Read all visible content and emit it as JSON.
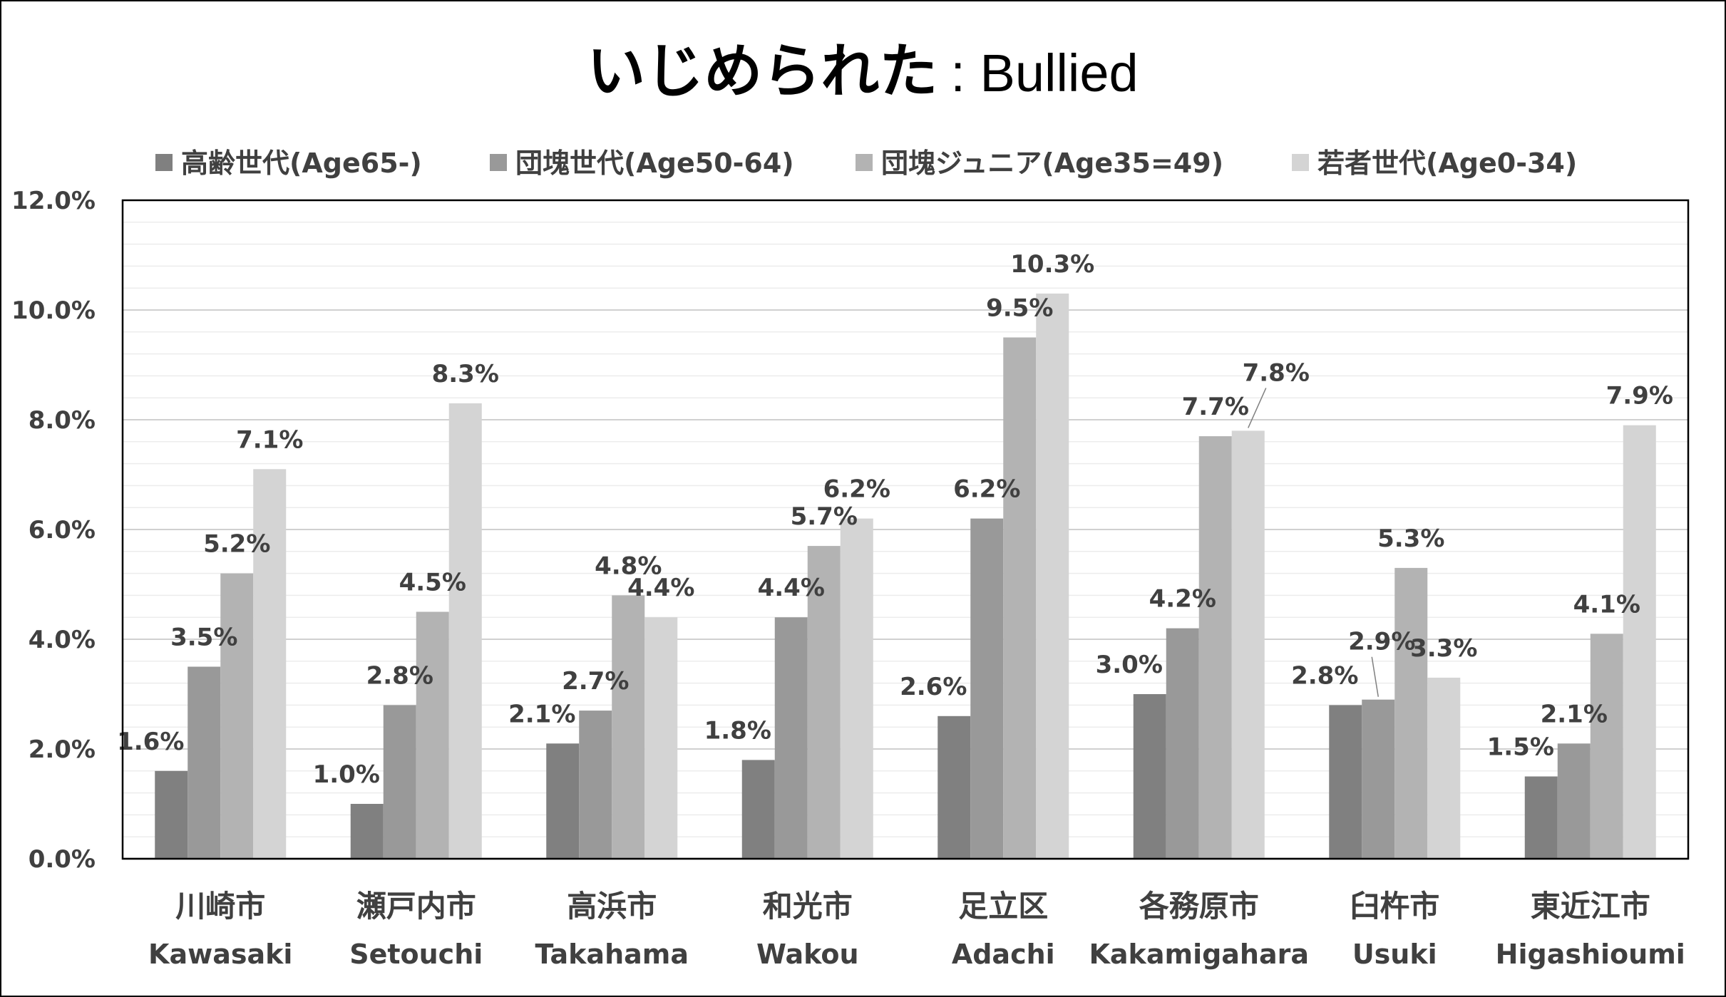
{
  "chart_data": {
    "type": "bar",
    "title_jp": "いじめられた",
    "title_en": ": Bullied",
    "xlabel": "",
    "ylabel": "",
    "ylim": [
      0,
      12
    ],
    "yticks": [
      "0.0%",
      "2.0%",
      "4.0%",
      "6.0%",
      "8.0%",
      "10.0%",
      "12.0%"
    ],
    "grid": true,
    "legend_position": "top",
    "categories": [
      {
        "jp": "川崎市",
        "en": "Kawasaki"
      },
      {
        "jp": "瀬戸内市",
        "en": "Setouchi"
      },
      {
        "jp": "高浜市",
        "en": "Takahama"
      },
      {
        "jp": "和光市",
        "en": "Wakou"
      },
      {
        "jp": "足立区",
        "en": "Adachi"
      },
      {
        "jp": "各務原市",
        "en": "Kakamigahara"
      },
      {
        "jp": "臼杵市",
        "en": "Usuki"
      },
      {
        "jp": "東近江市",
        "en": "Higashioumi"
      }
    ],
    "series": [
      {
        "name": "高齢世代(Age65-)",
        "color": "#808080",
        "values": [
          1.6,
          1.0,
          2.1,
          1.8,
          2.6,
          3.0,
          2.8,
          1.5
        ],
        "labels": [
          "1.6%",
          "1.0%",
          "2.1%",
          "1.8%",
          "2.6%",
          "3.0%",
          "2.8%",
          "1.5%"
        ]
      },
      {
        "name": "団塊世代(Age50-64)",
        "color": "#999999",
        "values": [
          3.5,
          2.8,
          2.7,
          4.4,
          6.2,
          4.2,
          2.9,
          2.1
        ],
        "labels": [
          "3.5%",
          "2.8%",
          "2.7%",
          "4.4%",
          "6.2%",
          "4.2%",
          "2.9%",
          "2.1%"
        ]
      },
      {
        "name": "団塊ジュニア(Age35=49)",
        "color": "#b3b3b3",
        "values": [
          5.2,
          4.5,
          4.8,
          5.7,
          9.5,
          7.7,
          5.3,
          4.1
        ],
        "labels": [
          "5.2%",
          "4.5%",
          "4.8%",
          "5.7%",
          "9.5%",
          "7.7%",
          "5.3%",
          "4.1%"
        ]
      },
      {
        "name": "若者世代(Age0-34)",
        "color": "#d4d4d4",
        "values": [
          7.1,
          8.3,
          4.4,
          6.2,
          10.3,
          7.8,
          3.3,
          7.9
        ],
        "labels": [
          "7.1%",
          "8.3%",
          "4.4%",
          "6.2%",
          "10.3%",
          "7.8%",
          "3.3%",
          "7.9%"
        ]
      }
    ]
  }
}
